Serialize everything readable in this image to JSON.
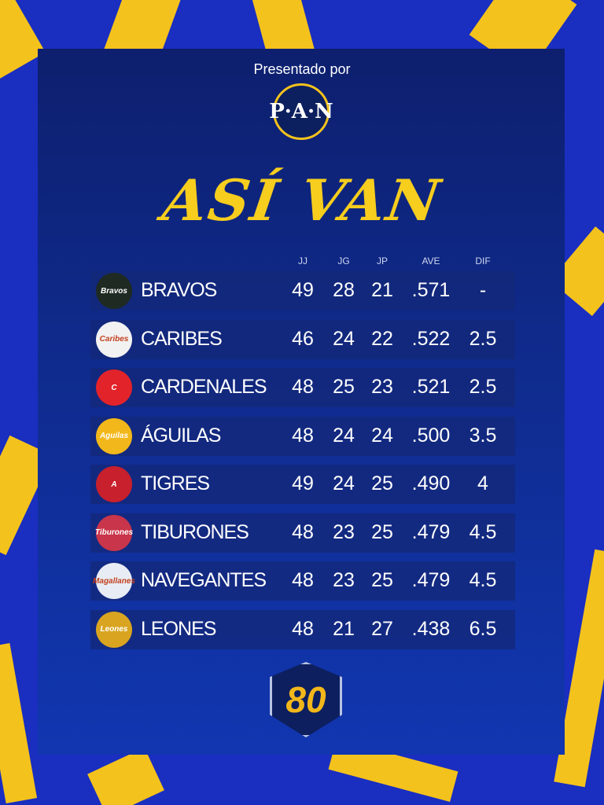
{
  "header": {
    "presented_by": "Presentado por",
    "sponsor_logo": "P·A·N",
    "title": "ASÍ VAN"
  },
  "columns": [
    "JJ",
    "JG",
    "JP",
    "AVE",
    "DIF"
  ],
  "teams": [
    {
      "name": "BRAVOS",
      "jj": "49",
      "jg": "28",
      "jp": "21",
      "ave": ".571",
      "dif": "-",
      "logo_color": "#1f2a22",
      "logo_text": "Bravos"
    },
    {
      "name": "CARIBES",
      "jj": "46",
      "jg": "24",
      "jp": "22",
      "ave": ".522",
      "dif": "2.5",
      "logo_color": "#f2f2f2",
      "logo_text": "Caribes"
    },
    {
      "name": "CARDENALES",
      "jj": "48",
      "jg": "25",
      "jp": "23",
      "ave": ".521",
      "dif": "2.5",
      "logo_color": "#e2232a",
      "logo_text": "C"
    },
    {
      "name": "ÁGUILAS",
      "jj": "48",
      "jg": "24",
      "jp": "24",
      "ave": ".500",
      "dif": "3.5",
      "logo_color": "#f2b71a",
      "logo_text": "Aguilas"
    },
    {
      "name": "TIGRES",
      "jj": "49",
      "jg": "24",
      "jp": "25",
      "ave": ".490",
      "dif": "4",
      "logo_color": "#c8202d",
      "logo_text": "A"
    },
    {
      "name": "TIBURONES",
      "jj": "48",
      "jg": "23",
      "jp": "25",
      "ave": ".479",
      "dif": "4.5",
      "logo_color": "#c9354a",
      "logo_text": "Tiburones"
    },
    {
      "name": "NAVEGANTES",
      "jj": "48",
      "jg": "23",
      "jp": "25",
      "ave": ".479",
      "dif": "4.5",
      "logo_color": "#e8ecf4",
      "logo_text": "Magallanes"
    },
    {
      "name": "LEONES",
      "jj": "48",
      "jg": "21",
      "jp": "27",
      "ave": ".438",
      "dif": "6.5",
      "logo_color": "#d9a520",
      "logo_text": "Leones"
    }
  ],
  "footer_badge": "80",
  "colors": {
    "accent": "#f7cd1e",
    "panel": "#0f2a8a",
    "background": "#1a2ec0"
  }
}
